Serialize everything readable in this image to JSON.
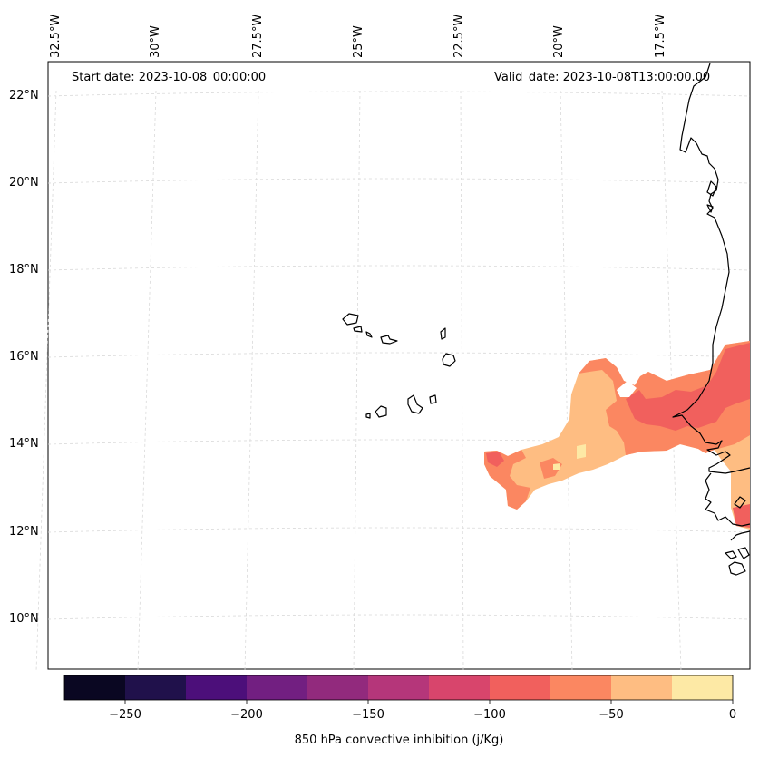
{
  "header": {
    "start_date": "Start date: 2023-10-08_00:00:00",
    "valid_date": "Valid_date: 2023-10-08T13:00:00.00"
  },
  "lon_labels": [
    "32.5°W",
    "30°W",
    "27.5°W",
    "25°W",
    "22.5°W",
    "20°W",
    "17.5°W"
  ],
  "lat_labels": [
    "22°N",
    "20°N",
    "18°N",
    "16°N",
    "14°N",
    "12°N",
    "10°N"
  ],
  "colorbar": {
    "label": "850 hPa convective inhibition (j/Kg)",
    "ticks": [
      "−250",
      "−200",
      "−150",
      "−100",
      "−50",
      "0"
    ],
    "levels": [
      -275,
      -250,
      -225,
      -200,
      -175,
      -150,
      -125,
      -100,
      -75,
      -50,
      -25,
      0
    ],
    "colors": [
      "#0a0722",
      "#20114b",
      "#4c0f7a",
      "#721f81",
      "#922a7d",
      "#b5367a",
      "#d8456c",
      "#f1605d",
      "#fb8761",
      "#febd82",
      "#fde9a5"
    ]
  },
  "colors": {
    "coastline": "#000000",
    "gridline": "#d9d9d9",
    "frame": "#000000"
  }
}
